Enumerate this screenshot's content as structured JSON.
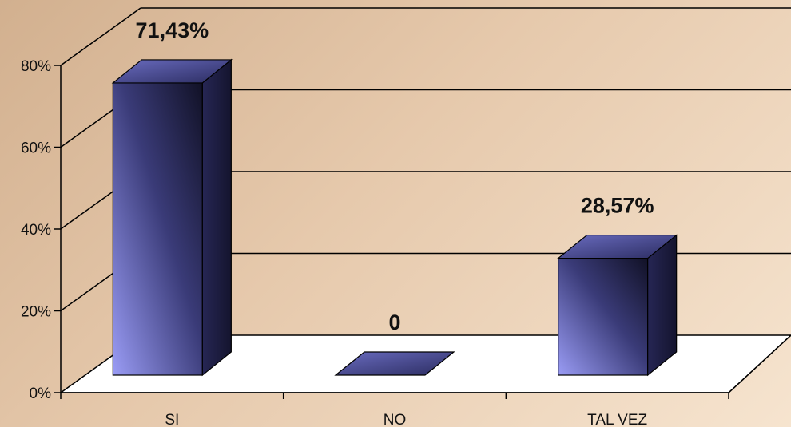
{
  "chart_data": {
    "type": "bar",
    "style": "3d-column",
    "categories": [
      "SI",
      "NO",
      "TAL VEZ"
    ],
    "values": [
      71.43,
      0,
      28.57
    ],
    "data_labels": [
      "71,43%",
      "0",
      "28,57%"
    ],
    "yticks": [
      "0%",
      "20%",
      "40%",
      "60%",
      "80%"
    ],
    "ylim": [
      0,
      80
    ],
    "grid": true,
    "legend": "none",
    "title": "",
    "xlabel": "",
    "ylabel": "",
    "colors": {
      "bar_front_light": "#9a9cf5",
      "bar_front_dark": "#111126",
      "bar_top": "#4a4c92",
      "bar_side": "#1c1c40",
      "floor": "#ffffff",
      "grid": "#000000"
    }
  }
}
